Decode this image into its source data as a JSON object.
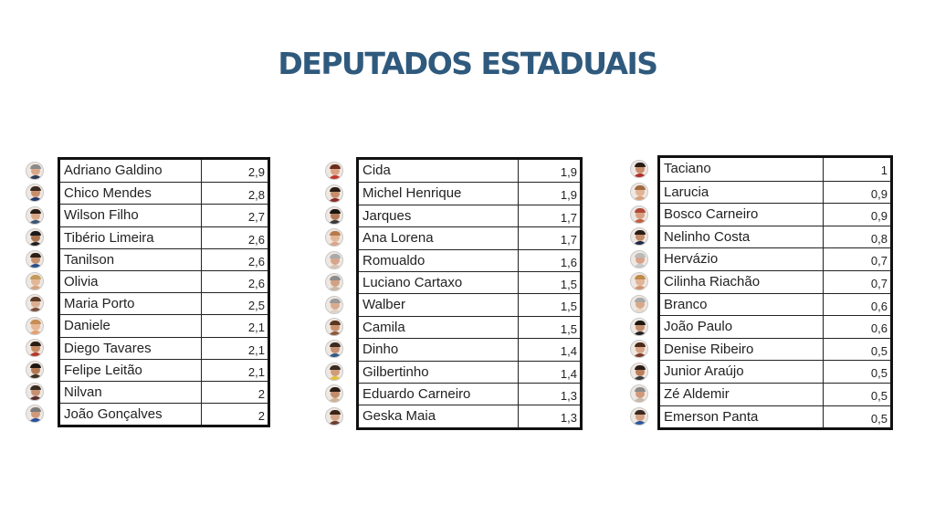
{
  "title": "DEPUTADOS ESTADUAIS",
  "columns": [
    {
      "rows": [
        {
          "name": "Adriano Galdino",
          "value": "2,9",
          "skin": "#d8a989",
          "hair": "#8a8a8a",
          "shirt": "#2d3c58"
        },
        {
          "name": "Chico Mendes",
          "value": "2,8",
          "skin": "#c98f6b",
          "hair": "#3a2a20",
          "shirt": "#243a6b"
        },
        {
          "name": "Wilson Filho",
          "value": "2,7",
          "skin": "#d9a888",
          "hair": "#2a1d15",
          "shirt": "#3b5573"
        },
        {
          "name": "Tibério Limeira",
          "value": "2,6",
          "skin": "#a8734f",
          "hair": "#1a1a1a",
          "shirt": "#222222"
        },
        {
          "name": "Tanilson",
          "value": "2,6",
          "skin": "#c4906e",
          "hair": "#2b2017",
          "shirt": "#2c4f88"
        },
        {
          "name": "Olivia",
          "value": "2,6",
          "skin": "#e3b697",
          "hair": "#c49a5c",
          "shirt": "#d5a37d"
        },
        {
          "name": "Maria Porto",
          "value": "2,5",
          "skin": "#dcae91",
          "hair": "#5a3b26",
          "shirt": "#7a4e3a"
        },
        {
          "name": "Daniele",
          "value": "2,1",
          "skin": "#e6b796",
          "hair": "#c88c55",
          "shirt": "#e6a070"
        },
        {
          "name": "Diego Tavares",
          "value": "2,1",
          "skin": "#c58b63",
          "hair": "#2a1d15",
          "shirt": "#b33a2b"
        },
        {
          "name": "Felipe Leitão",
          "value": "2,1",
          "skin": "#b17a55",
          "hair": "#1f1711",
          "shirt": "#3d3020"
        },
        {
          "name": "Nilvan",
          "value": "2",
          "skin": "#c69173",
          "hair": "#3a2b21",
          "shirt": "#5a2d2d"
        },
        {
          "name": "João Gonçalves",
          "value": "2",
          "skin": "#cf9a7a",
          "hair": "#7a7a7a",
          "shirt": "#2a4f9a"
        }
      ]
    },
    {
      "rows": [
        {
          "name": "Cida",
          "value": "1,9",
          "skin": "#d9a184",
          "hair": "#6b2e1e",
          "shirt": "#c0392b"
        },
        {
          "name": "Michel Henrique",
          "value": "1,9",
          "skin": "#c88e6c",
          "hair": "#2a1d15",
          "shirt": "#8a2b2b"
        },
        {
          "name": "Jarques",
          "value": "1,7",
          "skin": "#b27a58",
          "hair": "#1d1510",
          "shirt": "#3a3a3a"
        },
        {
          "name": "Ana Lorena",
          "value": "1,7",
          "skin": "#e4b698",
          "hair": "#b77b4a",
          "shirt": "#d9a58a"
        },
        {
          "name": "Romualdo",
          "value": "1,6",
          "skin": "#d6a68c",
          "hair": "#aaaaaa",
          "shirt": "#d9c3b4"
        },
        {
          "name": "Luciano Cartaxo",
          "value": "1,5",
          "skin": "#d2a184",
          "hair": "#8c8c8c",
          "shirt": "#c9b8a8"
        },
        {
          "name": "Walber",
          "value": "1,5",
          "skin": "#d9ab8e",
          "hair": "#9a9a9a",
          "shirt": "#e0d2c8"
        },
        {
          "name": "Camila",
          "value": "1,5",
          "skin": "#c99373",
          "hair": "#5a3620",
          "shirt": "#8c5a3c"
        },
        {
          "name": "Dinho",
          "value": "1,4",
          "skin": "#c48f6f",
          "hair": "#3a2a20",
          "shirt": "#2f5a8a"
        },
        {
          "name": "Gilbertinho",
          "value": "1,4",
          "skin": "#cf9c7a",
          "hair": "#3a2a20",
          "shirt": "#e0c040"
        },
        {
          "name": "Eduardo Carneiro",
          "value": "1,3",
          "skin": "#c28c6b",
          "hair": "#2a1d15",
          "shirt": "#d0b090"
        },
        {
          "name": "Geska Maia",
          "value": "1,3",
          "skin": "#d6a689",
          "hair": "#3a2518",
          "shirt": "#6a4030"
        }
      ]
    },
    {
      "rows": [
        {
          "name": "Taciano",
          "value": "1",
          "skin": "#c98d6a",
          "hair": "#2a1d15",
          "shirt": "#b0302b"
        },
        {
          "name": "Larucia",
          "value": "0,9",
          "skin": "#e2b496",
          "hair": "#a06a40",
          "shirt": "#d9a07a"
        },
        {
          "name": "Bosco Carneiro",
          "value": "0,9",
          "skin": "#d8a083",
          "hair": "#b04a3a",
          "shirt": "#c06040"
        },
        {
          "name": "Nelinho Costa",
          "value": "0,8",
          "skin": "#c28b69",
          "hair": "#2a1d15",
          "shirt": "#1e2a44"
        },
        {
          "name": "Hervázio",
          "value": "0,7",
          "skin": "#d7a38a",
          "hair": "#bbbbbb",
          "shirt": "#c7c7c7"
        },
        {
          "name": "Cilinha Riachão",
          "value": "0,7",
          "skin": "#e2b497",
          "hair": "#c08a4a",
          "shirt": "#d29470"
        },
        {
          "name": "Branco",
          "value": "0,6",
          "skin": "#d9a88c",
          "hair": "#a8a8a8",
          "shirt": "#e8d8c8"
        },
        {
          "name": "João Paulo",
          "value": "0,6",
          "skin": "#c38c6c",
          "hair": "#1d1510",
          "shirt": "#222222"
        },
        {
          "name": "Denise Ribeiro",
          "value": "0,5",
          "skin": "#d7a487",
          "hair": "#4a2a1a",
          "shirt": "#7a3a2a"
        },
        {
          "name": "Junior Araújo",
          "value": "0,5",
          "skin": "#b97e5a",
          "hair": "#2a1d15",
          "shirt": "#3a3a3a"
        },
        {
          "name": "Zé Aldemir",
          "value": "0,5",
          "skin": "#cf9a7b",
          "hair": "#8a8a8a",
          "shirt": "#c8b8a8"
        },
        {
          "name": "Emerson Panta",
          "value": "0,5",
          "skin": "#d4a081",
          "hair": "#3a2a20",
          "shirt": "#2a5a9a"
        }
      ]
    }
  ]
}
